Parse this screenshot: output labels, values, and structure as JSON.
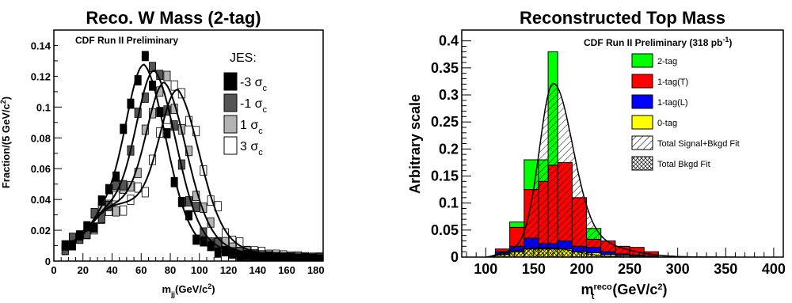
{
  "chart_data": [
    {
      "type": "line",
      "title": "Reco. W Mass (2-tag)",
      "annotation": "CDF Run II Preliminary",
      "xlabel": "m_jj(GeV/c^2)",
      "ylabel": "Fraction/(5 GeV/c^2)",
      "xlim": [
        0,
        185
      ],
      "ylim": [
        0,
        0.15
      ],
      "x_ticks": [
        "0",
        "20",
        "40",
        "60",
        "80",
        "100",
        "120",
        "140",
        "160",
        "180"
      ],
      "y_ticks": [
        "0",
        "0.02",
        "0.04",
        "0.06",
        "0.08",
        "0.1",
        "0.12",
        "0.14"
      ],
      "legend_title": "JES:",
      "legend_position": "top-right",
      "series": [
        {
          "name": "-3 σc",
          "mean": 62,
          "peak": 0.115,
          "fill": "#000000"
        },
        {
          "name": "-1 σc",
          "mean": 69,
          "peak": 0.11,
          "fill": "#555555"
        },
        {
          "name": "1 σc",
          "mean": 76,
          "peak": 0.1,
          "fill": "#b3b3b3"
        },
        {
          "name": "3 σc",
          "mean": 85,
          "peak": 0.094,
          "fill": "#ffffff"
        }
      ]
    },
    {
      "type": "bar",
      "stacked": true,
      "title": "Reconstructed Top Mass",
      "annotation": "CDF Run II Preliminary (318 pb^-1)",
      "xlabel": "m_t^reco (GeV/c^2)",
      "ylabel": "Arbitrary scale",
      "xlim": [
        75,
        410
      ],
      "ylim": [
        0,
        0.42
      ],
      "x_ticks": [
        "100",
        "150",
        "200",
        "250",
        "300",
        "350",
        "400"
      ],
      "y_ticks": [
        "0",
        "0.05",
        "0.1",
        "0.15",
        "0.2",
        "0.25",
        "0.3",
        "0.35",
        "0.4"
      ],
      "bin_edges": [
        110,
        125,
        140,
        155,
        165,
        175,
        190,
        205,
        220,
        235,
        250,
        265,
        280
      ],
      "series": [
        {
          "name": "0-tag",
          "color": "#ffff00",
          "values": [
            0.005,
            0.01,
            0.015,
            0.015,
            0.015,
            0.015,
            0.01,
            0.008,
            0.005,
            0.003,
            0.002,
            0.001
          ]
        },
        {
          "name": "1-tag(L)",
          "color": "#0000ff",
          "values": [
            0.005,
            0.01,
            0.02,
            0.01,
            0.01,
            0.015,
            0.01,
            0.01,
            0.005,
            0.003,
            0.002,
            0.001
          ]
        },
        {
          "name": "1-tag(T)",
          "color": "#ff0000",
          "values": [
            0.005,
            0.035,
            0.09,
            0.115,
            0.145,
            0.145,
            0.09,
            0.015,
            0.02,
            0.014,
            0.014,
            0.008
          ]
        },
        {
          "name": "2-tag",
          "color": "#00ff00",
          "values": [
            0.0,
            0.01,
            0.055,
            0.04,
            0.21,
            0.0,
            0.0,
            0.02,
            0.0,
            0.0,
            0.0,
            0.0
          ]
        }
      ],
      "fits": [
        {
          "name": "Total Signal+Bkgd Fit",
          "pattern": "hatch"
        },
        {
          "name": "Total Bkgd Fit",
          "pattern": "crosshatch"
        }
      ],
      "legend_position": "top-right"
    }
  ]
}
